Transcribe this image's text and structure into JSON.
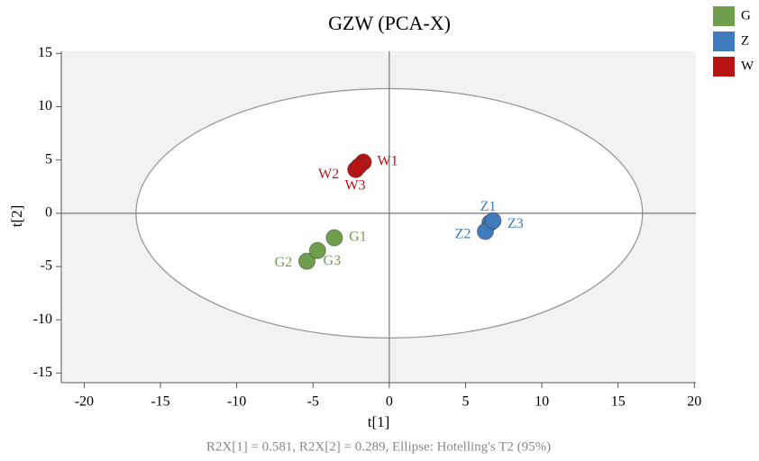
{
  "chart_data": {
    "type": "scatter",
    "title": "GZW (PCA-X)",
    "xlabel": "t[1]",
    "ylabel": "t[2]",
    "subtitle": "R2X[1] = 0.581, R2X[2] = 0.289, Ellipse: Hotelling's T2 (95%)",
    "xlim": [
      -21.5,
      20.1
    ],
    "ylim": [
      -15.9,
      15.2
    ],
    "xticks": [
      -20,
      -15,
      -10,
      -5,
      0,
      5,
      10,
      15,
      20
    ],
    "yticks": [
      -15,
      -10,
      -5,
      0,
      5,
      10,
      15
    ],
    "ellipse": {
      "rx": 16.6,
      "ry": 11.7
    },
    "series": [
      {
        "name": "G",
        "color": "#6f9e4c",
        "labels": [
          "G1",
          "G2",
          "G3"
        ],
        "x": [
          -3.6,
          -5.4,
          -4.7
        ],
        "values": [
          -2.3,
          -4.5,
          -3.5
        ]
      },
      {
        "name": "Z",
        "color": "#3f7bbd",
        "labels": [
          "Z1",
          "Z2",
          "Z3"
        ],
        "x": [
          6.6,
          6.3,
          6.8
        ],
        "values": [
          -0.9,
          -1.7,
          -0.7
        ]
      },
      {
        "name": "W",
        "color": "#b81414",
        "labels": [
          "W1",
          "W2",
          "W3"
        ],
        "x": [
          -1.7,
          -2.2,
          -2.0
        ],
        "values": [
          4.8,
          4.1,
          4.4
        ]
      }
    ]
  }
}
